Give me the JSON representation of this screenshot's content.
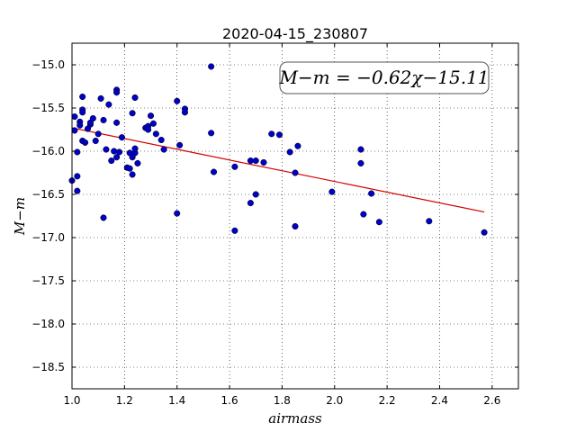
{
  "chart_data": {
    "type": "scatter",
    "title": "2020-04-15_230807",
    "xlabel": "airmass",
    "ylabel": "M−m",
    "xlim": [
      1.0,
      2.7
    ],
    "ylim": [
      -18.75,
      -14.75
    ],
    "xticks": [
      1.0,
      1.2,
      1.4,
      1.6,
      1.8,
      2.0,
      2.2,
      2.4,
      2.6
    ],
    "xtick_labels": [
      "1.0",
      "1.2",
      "1.4",
      "1.6",
      "1.8",
      "2.0",
      "2.2",
      "2.4",
      "2.6"
    ],
    "yticks": [
      -15.0,
      -15.5,
      -16.0,
      -16.5,
      -17.0,
      -17.5,
      -18.0,
      -18.5
    ],
    "ytick_labels": [
      "−15.0",
      "−15.5",
      "−16.0",
      "−16.5",
      "−17.0",
      "−17.5",
      "−18.0",
      "−18.5"
    ],
    "grid": true,
    "annotation": "M−m = −0.62χ−15.11",
    "fit": {
      "slope": -0.62,
      "intercept": -15.11,
      "x_range": [
        1.0,
        2.57
      ],
      "color": "#d40000"
    },
    "point_color": "#0000c8",
    "points": [
      [
        1.0,
        -16.34
      ],
      [
        1.01,
        -15.6
      ],
      [
        1.01,
        -15.76
      ],
      [
        1.02,
        -16.46
      ],
      [
        1.02,
        -16.29
      ],
      [
        1.02,
        -16.01
      ],
      [
        1.03,
        -15.66
      ],
      [
        1.03,
        -15.7
      ],
      [
        1.04,
        -15.37
      ],
      [
        1.04,
        -15.52
      ],
      [
        1.04,
        -15.55
      ],
      [
        1.04,
        -15.88
      ],
      [
        1.05,
        -15.9
      ],
      [
        1.06,
        -15.74
      ],
      [
        1.07,
        -15.69
      ],
      [
        1.07,
        -15.67
      ],
      [
        1.08,
        -15.62
      ],
      [
        1.09,
        -15.88
      ],
      [
        1.1,
        -15.8
      ],
      [
        1.11,
        -15.39
      ],
      [
        1.12,
        -15.64
      ],
      [
        1.12,
        -16.77
      ],
      [
        1.13,
        -15.98
      ],
      [
        1.14,
        -15.46
      ],
      [
        1.15,
        -16.11
      ],
      [
        1.16,
        -16.0
      ],
      [
        1.17,
        -16.07
      ],
      [
        1.17,
        -15.29
      ],
      [
        1.17,
        -15.32
      ],
      [
        1.17,
        -15.67
      ],
      [
        1.18,
        -16.01
      ],
      [
        1.19,
        -15.84
      ],
      [
        1.21,
        -16.19
      ],
      [
        1.22,
        -16.02
      ],
      [
        1.22,
        -16.2
      ],
      [
        1.23,
        -15.56
      ],
      [
        1.23,
        -16.27
      ],
      [
        1.23,
        -16.07
      ],
      [
        1.24,
        -15.38
      ],
      [
        1.24,
        -16.02
      ],
      [
        1.24,
        -15.97
      ],
      [
        1.25,
        -16.14
      ],
      [
        1.28,
        -15.73
      ],
      [
        1.29,
        -15.71
      ],
      [
        1.29,
        -15.75
      ],
      [
        1.3,
        -15.59
      ],
      [
        1.31,
        -15.68
      ],
      [
        1.32,
        -15.8
      ],
      [
        1.34,
        -15.87
      ],
      [
        1.35,
        -15.98
      ],
      [
        1.4,
        -15.42
      ],
      [
        1.41,
        -15.93
      ],
      [
        1.4,
        -16.72
      ],
      [
        1.43,
        -15.51
      ],
      [
        1.43,
        -15.55
      ],
      [
        1.53,
        -15.02
      ],
      [
        1.53,
        -15.79
      ],
      [
        1.54,
        -16.24
      ],
      [
        1.62,
        -16.92
      ],
      [
        1.62,
        -16.18
      ],
      [
        1.68,
        -16.11
      ],
      [
        1.68,
        -16.6
      ],
      [
        1.7,
        -16.11
      ],
      [
        1.7,
        -16.5
      ],
      [
        1.73,
        -16.13
      ],
      [
        1.76,
        -15.8
      ],
      [
        1.79,
        -15.81
      ],
      [
        1.83,
        -16.01
      ],
      [
        1.85,
        -16.87
      ],
      [
        1.85,
        -16.25
      ],
      [
        1.86,
        -15.94
      ],
      [
        1.99,
        -16.47
      ],
      [
        2.1,
        -16.14
      ],
      [
        2.1,
        -15.98
      ],
      [
        2.11,
        -16.73
      ],
      [
        2.14,
        -16.49
      ],
      [
        2.17,
        -16.82
      ],
      [
        2.36,
        -16.81
      ],
      [
        2.57,
        -16.94
      ]
    ]
  }
}
